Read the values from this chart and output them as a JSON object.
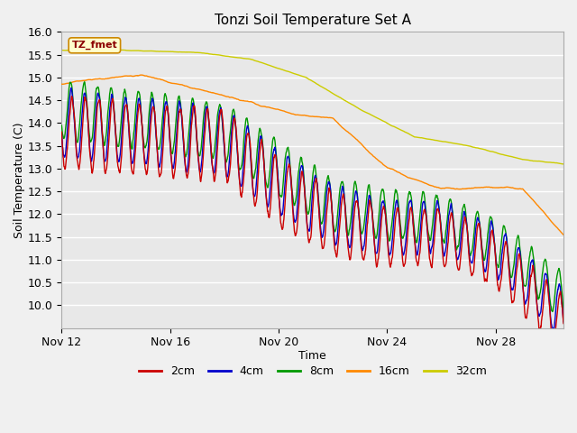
{
  "title": "Tonzi Soil Temperature Set A",
  "xlabel": "Time",
  "ylabel": "Soil Temperature (C)",
  "ylim": [
    9.5,
    16.0
  ],
  "yticks": [
    10.0,
    10.5,
    11.0,
    11.5,
    12.0,
    12.5,
    13.0,
    13.5,
    14.0,
    14.5,
    15.0,
    15.5,
    16.0
  ],
  "xticks_labels": [
    "Nov 12",
    "Nov 16",
    "Nov 20",
    "Nov 24",
    "Nov 28"
  ],
  "xtick_positions": [
    0,
    4,
    8,
    12,
    16
  ],
  "colors": {
    "2cm": "#cc0000",
    "4cm": "#0000cc",
    "8cm": "#009900",
    "16cm": "#ff8800",
    "32cm": "#cccc00"
  },
  "legend_label": "TZ_fmet",
  "n_days": 18.5,
  "n_per_day": 96
}
